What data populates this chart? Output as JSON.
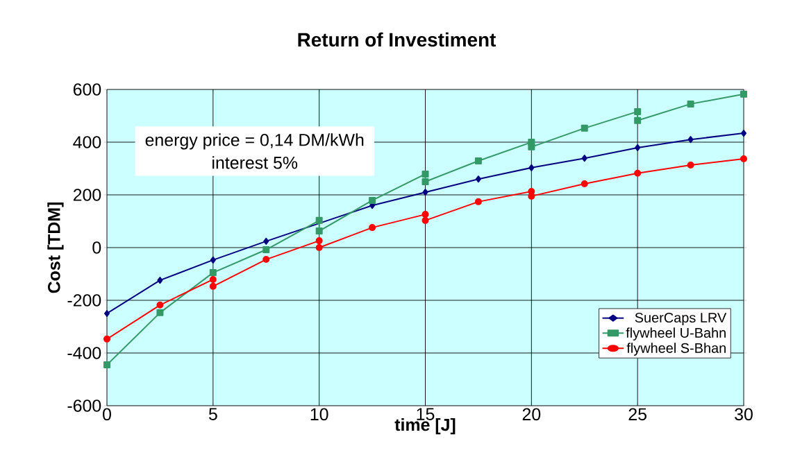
{
  "chart_data": {
    "type": "line",
    "title": "Return of Investiment",
    "xlabel": "time [J]",
    "ylabel": "Cost [TDM]",
    "annotations": [
      "energy price = 0,14 DM/kWh",
      "interest 5%"
    ],
    "xlim": [
      0,
      30
    ],
    "xticks": [
      0,
      5,
      10,
      15,
      20,
      25,
      30
    ],
    "ylim": [
      -600,
      600
    ],
    "yticks": [
      -600,
      -400,
      -200,
      0,
      200,
      400,
      600
    ],
    "grid": true,
    "legend": "bottom right",
    "line_style": "solid",
    "series": [
      {
        "name": "SuerCaps LRV",
        "color": "#000080",
        "marker": "diamond",
        "x": [
          0,
          2.5,
          5,
          7.5,
          10,
          12.5,
          15,
          17.5,
          20,
          22.5,
          25,
          27.5,
          30
        ],
        "values": [
          -250,
          -124,
          -47,
          24,
          null,
          160,
          210,
          260,
          303,
          339,
          379,
          410,
          434
        ]
      },
      {
        "name": "flywheel U-Bahn",
        "color": "#339966",
        "marker": "square",
        "x": [
          0,
          2.5,
          5,
          7.5,
          10,
          10,
          12.5,
          15,
          15,
          17.5,
          20,
          20,
          22.5,
          25,
          25,
          27.5,
          30
        ],
        "values": [
          -445,
          -247,
          -95,
          -8,
          103,
          63,
          179,
          279,
          250,
          329,
          400,
          382,
          453,
          516,
          482,
          545,
          582
        ]
      },
      {
        "name": "flywheel S-Bhan",
        "color": "#ff0000",
        "marker": "circle",
        "x": [
          0,
          2.5,
          5,
          5,
          7.5,
          10,
          10,
          12.5,
          15,
          15,
          17.5,
          20,
          20,
          22.5,
          25,
          27.5,
          30
        ],
        "values": [
          -347,
          -218,
          -121,
          -147,
          -45,
          26,
          0,
          76,
          126,
          103,
          174,
          213,
          195,
          242,
          282,
          313,
          337
        ]
      }
    ]
  }
}
